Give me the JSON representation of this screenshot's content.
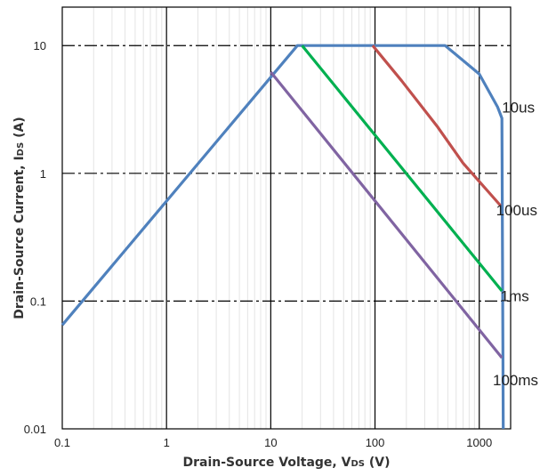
{
  "chart_data": {
    "type": "line",
    "xscale": "log",
    "yscale": "log",
    "xlim": [
      0.1,
      2000
    ],
    "ylim": [
      0.01,
      20
    ],
    "grid": true,
    "x_tick_labels": [
      "0.1",
      "1",
      "10",
      "100",
      "1000"
    ],
    "y_tick_labels": [
      "10",
      "1",
      "0.1",
      "0.01"
    ],
    "x_ticks": [
      0.1,
      1,
      10,
      100,
      1000
    ],
    "y_ticks": [
      10,
      1,
      0.1,
      0.01
    ],
    "xlabel": {
      "main": "Drain-Source Voltage, V",
      "sub": "DS",
      "unit": " (V)"
    },
    "ylabel": {
      "main": "Drain-Source Current, I",
      "sub": "DS",
      "unit": " (A)"
    },
    "series": [
      {
        "name": "10us",
        "color": "#4f81bd",
        "points": [
          [
            0.1,
            0.065
          ],
          [
            18,
            10
          ],
          [
            470,
            10
          ],
          [
            1000,
            6
          ],
          [
            1500,
            3.3
          ],
          [
            1650,
            2.7
          ],
          [
            1700,
            0.01
          ]
        ]
      },
      {
        "name": "100us",
        "color": "#c0504d",
        "points": [
          [
            95,
            10
          ],
          [
            180,
            5.3
          ],
          [
            400,
            2.3
          ],
          [
            700,
            1.2
          ],
          [
            1600,
            0.56
          ]
        ]
      },
      {
        "name": "1ms",
        "color": "#00b050",
        "points": [
          [
            20,
            10
          ],
          [
            1650,
            0.12
          ]
        ]
      },
      {
        "name": "100ms",
        "color": "#8064a2",
        "points": [
          [
            10,
            6.2
          ],
          [
            1650,
            0.036
          ]
        ]
      }
    ],
    "labels": [
      {
        "text": "10us",
        "x": 1650,
        "y": 3.0
      },
      {
        "text": "100us",
        "x": 1450,
        "y": 0.47
      },
      {
        "text": "1ms",
        "x": 1600,
        "y": 0.1
      },
      {
        "text": "100ms",
        "x": 1350,
        "y": 0.022
      }
    ]
  }
}
